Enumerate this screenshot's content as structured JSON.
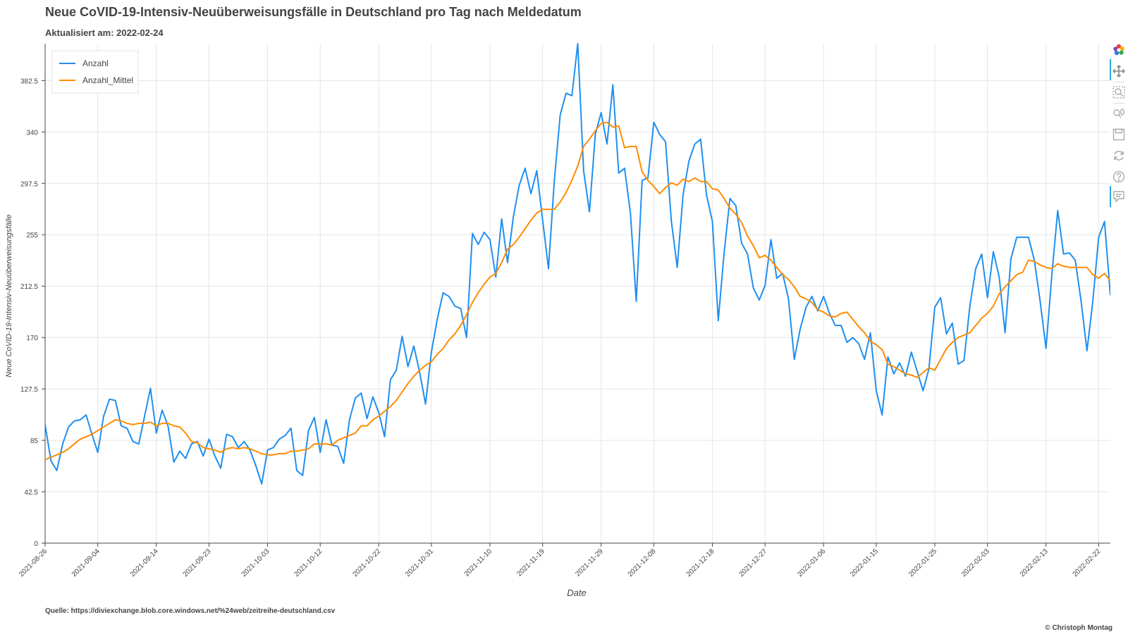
{
  "title": "Neue CoVID-19-Intensiv-Neuüberweisungsfälle in Deutschland pro Tag nach Meldedatum",
  "subtitle": "Aktualisiert am: 2022-02-24",
  "source": "Quelle: https://diviexchange.blob.core.windows.net/%24web/zeitreihe-deutschland.csv",
  "copyright": "© Christoph Montag",
  "toolbar": {
    "tools": [
      "bokeh-logo-icon",
      "pan-icon",
      "box-zoom-icon",
      "wheel-zoom-icon",
      "save-icon",
      "reset-icon",
      "help-icon",
      "hover-icon"
    ]
  },
  "chart_data": {
    "type": "line",
    "title": "Neue CoVID-19-Intensiv-Neuüberweisungsfälle in Deutschland pro Tag nach Meldedatum",
    "xlabel": "Date",
    "ylabel": "Neue CoVID-19-Intensiv-Neuüberweisungsfälle",
    "x_start": "2021-08-26",
    "x_end": "2022-02-24",
    "xlim": [
      "2021-08-26",
      "2022-02-24"
    ],
    "ylim": [
      0,
      413
    ],
    "yticks": [
      0,
      42.5,
      85,
      127.5,
      170,
      212.5,
      255,
      297.5,
      340,
      382.5
    ],
    "ytick_labels": [
      "0",
      "42.5",
      "85",
      "127.5",
      "170",
      "212.5",
      "255",
      "297.5",
      "340",
      "382.5"
    ],
    "xtick_labels": [
      "2021-08-26",
      "2021-09-04",
      "2021-09-14",
      "2021-09-23",
      "2021-10-03",
      "2021-10-12",
      "2021-10-22",
      "2021-10-31",
      "2021-11-10",
      "2021-11-19",
      "2021-11-29",
      "2021-12-08",
      "2021-12-18",
      "2021-12-27",
      "2022-01-06",
      "2022-01-15",
      "2022-01-25",
      "2022-02-03",
      "2022-02-13",
      "2022-02-22"
    ],
    "grid": true,
    "legend_position": "top-left",
    "series": [
      {
        "name": "Anzahl",
        "color": "#1f8ff0",
        "values": [
          98,
          68,
          60,
          82,
          96,
          101,
          102,
          106,
          90,
          75,
          105,
          119,
          118,
          97,
          95,
          84,
          82,
          105,
          128,
          91,
          110,
          97,
          67,
          76,
          70,
          82,
          84,
          72,
          86,
          72,
          62,
          90,
          88,
          79,
          84,
          77,
          64,
          49,
          77,
          79,
          86,
          89,
          95,
          60,
          56,
          93,
          104,
          75,
          102,
          81,
          80,
          66,
          102,
          120,
          124,
          103,
          121,
          108,
          88,
          135,
          143,
          171,
          146,
          163,
          141,
          115,
          158,
          185,
          207,
          204,
          196,
          194,
          170,
          256,
          247,
          257,
          251,
          220,
          268,
          232,
          270,
          296,
          310,
          289,
          308,
          267,
          227,
          300,
          354,
          372,
          370,
          413,
          308,
          274,
          338,
          356,
          330,
          379,
          306,
          310,
          273,
          200,
          300,
          302,
          348,
          338,
          332,
          266,
          228,
          288,
          316,
          330,
          334,
          288,
          266,
          184,
          240,
          285,
          279,
          248,
          239,
          211,
          201,
          213,
          251,
          219,
          223,
          202,
          152,
          177,
          195,
          204,
          192,
          204,
          190,
          180,
          180,
          166,
          170,
          165,
          152,
          174,
          126,
          106,
          154,
          140,
          149,
          138,
          158,
          142,
          126,
          144,
          195,
          203,
          173,
          182,
          148,
          151,
          196,
          227,
          239,
          203,
          241,
          220,
          174,
          235,
          253,
          253,
          253,
          234,
          200,
          161,
          222,
          275,
          239,
          240,
          234,
          200,
          159,
          200,
          253,
          266,
          205
        ],
        "y_values": [
          98,
          68,
          60,
          82,
          96,
          101,
          102,
          106,
          90,
          75,
          105,
          119,
          118,
          97,
          95,
          84,
          82,
          105,
          128,
          91,
          110,
          97,
          67,
          76,
          70,
          82,
          84,
          72,
          86,
          72,
          62,
          90,
          88,
          79,
          84,
          77,
          64,
          49,
          77,
          79,
          86,
          89,
          95,
          60,
          56,
          93,
          104,
          75,
          102,
          81,
          80,
          66,
          102,
          120,
          124,
          103,
          121,
          108,
          88,
          135,
          143,
          171,
          146,
          163,
          141,
          115,
          158,
          185,
          207,
          204,
          196,
          194,
          170,
          256,
          247,
          257,
          251,
          220,
          268,
          232,
          270,
          296,
          310,
          289,
          308,
          267,
          227,
          300,
          354,
          372,
          370,
          413,
          308,
          274,
          338,
          356,
          330,
          379,
          306,
          310,
          273,
          200,
          300,
          302,
          348,
          338,
          332,
          266,
          228,
          288,
          316,
          330,
          334,
          288,
          266,
          184,
          240,
          285,
          279,
          248,
          239,
          211,
          201,
          213,
          251,
          219,
          223,
          202,
          152,
          177,
          195,
          204,
          192,
          204,
          190,
          180,
          180,
          166,
          170,
          165,
          152,
          174,
          126,
          106,
          154,
          140,
          149,
          138,
          158,
          142,
          126,
          144,
          195,
          203,
          173,
          182,
          148,
          151,
          196,
          227,
          239,
          203,
          241,
          220,
          174,
          235,
          253,
          253,
          253,
          234,
          200,
          161,
          222,
          275,
          239,
          240,
          234,
          200,
          159,
          200,
          253,
          266,
          205
        ]
      },
      {
        "name": "Anzahl_Mittel",
        "color": "#ff8c00",
        "values": [
          69,
          71,
          73,
          75,
          78,
          82,
          86,
          88,
          90,
          93,
          96,
          99,
          102,
          101,
          99,
          98,
          99,
          99,
          100,
          97,
          99,
          99,
          97,
          96,
          91,
          84,
          83,
          79,
          78,
          77,
          75,
          78,
          79,
          78,
          79,
          78,
          76,
          74,
          73,
          73,
          74,
          74,
          76,
          76,
          77,
          78,
          82,
          82,
          82,
          81,
          85,
          87,
          89,
          91,
          97,
          97,
          102,
          105,
          109,
          113,
          118,
          125,
          132,
          138,
          143,
          147,
          150,
          156,
          161,
          168,
          173,
          180,
          189,
          199,
          207,
          214,
          220,
          223,
          232,
          243,
          247,
          253,
          260,
          267,
          273,
          276,
          276,
          276,
          282,
          290,
          300,
          312,
          328,
          334,
          341,
          347,
          348,
          344,
          345,
          327,
          328,
          328,
          307,
          300,
          295,
          289,
          294,
          298,
          296,
          301,
          299,
          302,
          299,
          299,
          293,
          292,
          285,
          277,
          272,
          265,
          254,
          246,
          236,
          238,
          234,
          228,
          222,
          218,
          212,
          204,
          202,
          199,
          193,
          191,
          188,
          187,
          190,
          191,
          185,
          179,
          174,
          167,
          164,
          160,
          148,
          146,
          143,
          140,
          139,
          137,
          141,
          145,
          143,
          152,
          161,
          166,
          170,
          172,
          174,
          180,
          186,
          190,
          196,
          206,
          212,
          217,
          222,
          224,
          234,
          233,
          230,
          228,
          227,
          231,
          229,
          228,
          228,
          228,
          228,
          222,
          219,
          223,
          217
        ],
        "y_values": [
          69,
          71,
          73,
          75,
          78,
          82,
          86,
          88,
          90,
          93,
          96,
          99,
          102,
          101,
          99,
          98,
          99,
          99,
          100,
          97,
          99,
          99,
          97,
          96,
          91,
          84,
          83,
          79,
          78,
          77,
          75,
          78,
          79,
          78,
          79,
          78,
          76,
          74,
          73,
          73,
          74,
          74,
          76,
          76,
          77,
          78,
          82,
          82,
          82,
          81,
          85,
          87,
          89,
          91,
          97,
          97,
          102,
          105,
          109,
          113,
          118,
          125,
          132,
          138,
          143,
          147,
          150,
          156,
          161,
          168,
          173,
          180,
          189,
          199,
          207,
          214,
          220,
          223,
          232,
          243,
          247,
          253,
          260,
          267,
          273,
          276,
          276,
          276,
          282,
          290,
          300,
          312,
          328,
          334,
          341,
          347,
          348,
          344,
          345,
          327,
          328,
          328,
          307,
          300,
          295,
          289,
          294,
          298,
          296,
          301,
          299,
          302,
          299,
          299,
          293,
          292,
          285,
          277,
          272,
          265,
          254,
          246,
          236,
          238,
          234,
          228,
          222,
          218,
          212,
          204,
          202,
          199,
          193,
          191,
          188,
          187,
          190,
          191,
          185,
          179,
          174,
          167,
          164,
          160,
          148,
          146,
          143,
          140,
          139,
          137,
          141,
          145,
          143,
          152,
          161,
          166,
          170,
          172,
          174,
          180,
          186,
          190,
          196,
          206,
          212,
          217,
          222,
          224,
          234,
          233,
          230,
          228,
          227,
          231,
          229,
          228,
          228,
          228,
          228,
          222,
          219,
          223,
          217
        ]
      }
    ]
  }
}
